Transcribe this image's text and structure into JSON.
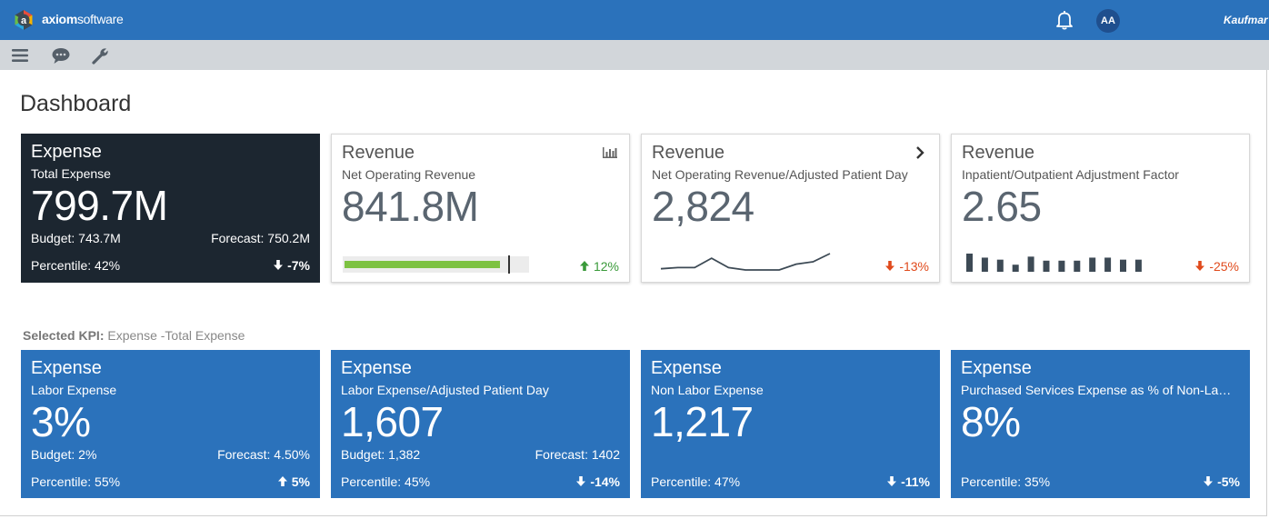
{
  "topbar": {
    "brand_bold": "axiom",
    "brand_rest": "software",
    "avatar_initials": "AA",
    "client": "Kaufmar"
  },
  "page": {
    "title": "Dashboard"
  },
  "kpi_cards": [
    {
      "category": "Expense",
      "subtitle": "Total Expense",
      "value": "799.7M",
      "budget": "Budget: 743.7M",
      "forecast": "Forecast: 750.2M",
      "percentile": "Percentile: 42%",
      "change": "-7%"
    },
    {
      "category": "Revenue",
      "subtitle": "Net Operating Revenue",
      "value": "841.8M",
      "change": "12%",
      "progress_fraction": 0.85,
      "target_fraction": 0.89
    },
    {
      "category": "Revenue",
      "subtitle": "Net Operating Revenue/Adjusted Patient Day",
      "value": "2,824",
      "change": "-13%",
      "trend": [
        2,
        3,
        3,
        11,
        3,
        1,
        1,
        1,
        6,
        8,
        15
      ]
    },
    {
      "category": "Revenue",
      "subtitle": "Inpatient/Outpatient Adjustment Factor",
      "value": "2.65",
      "change": "-25%",
      "bars": [
        18,
        14,
        12,
        7,
        15,
        11,
        11,
        11,
        14,
        14,
        12,
        12
      ]
    }
  ],
  "selected_kpi": {
    "label": "Selected KPI:",
    "value": "Expense -Total Expense"
  },
  "detail_cards": [
    {
      "category": "Expense",
      "subtitle": "Labor Expense",
      "value": "3%",
      "budget": "Budget: 2%",
      "forecast": "Forecast: 4.50%",
      "percentile": "Percentile: 55%",
      "change": "5%"
    },
    {
      "category": "Expense",
      "subtitle": "Labor Expense/Adjusted Patient Day",
      "value": "1,607",
      "budget": "Budget: 1,382",
      "forecast": "Forecast: 1402",
      "percentile": "Percentile: 45%",
      "change": "-14%"
    },
    {
      "category": "Expense",
      "subtitle": "Non Labor Expense",
      "value": "1,217",
      "percentile": "Percentile: 47%",
      "change": "-11%"
    },
    {
      "category": "Expense",
      "subtitle": "Purchased Services Expense as % of Non-Labor Expense",
      "value": "8%",
      "percentile": "Percentile: 35%",
      "change": "-5%"
    }
  ],
  "colors": {
    "topbar": "#2b72bb",
    "dark_card": "#1c2630",
    "progress": "#7dc242",
    "positive": "#3a9a3a",
    "negative": "#e04a1c"
  },
  "icons": [
    "axiom-logo-icon",
    "bell-icon",
    "hamburger-icon",
    "chat-icon",
    "wrench-icon",
    "bar-chart-icon",
    "chevron-right-icon",
    "arrow-up-icon",
    "arrow-down-icon"
  ]
}
